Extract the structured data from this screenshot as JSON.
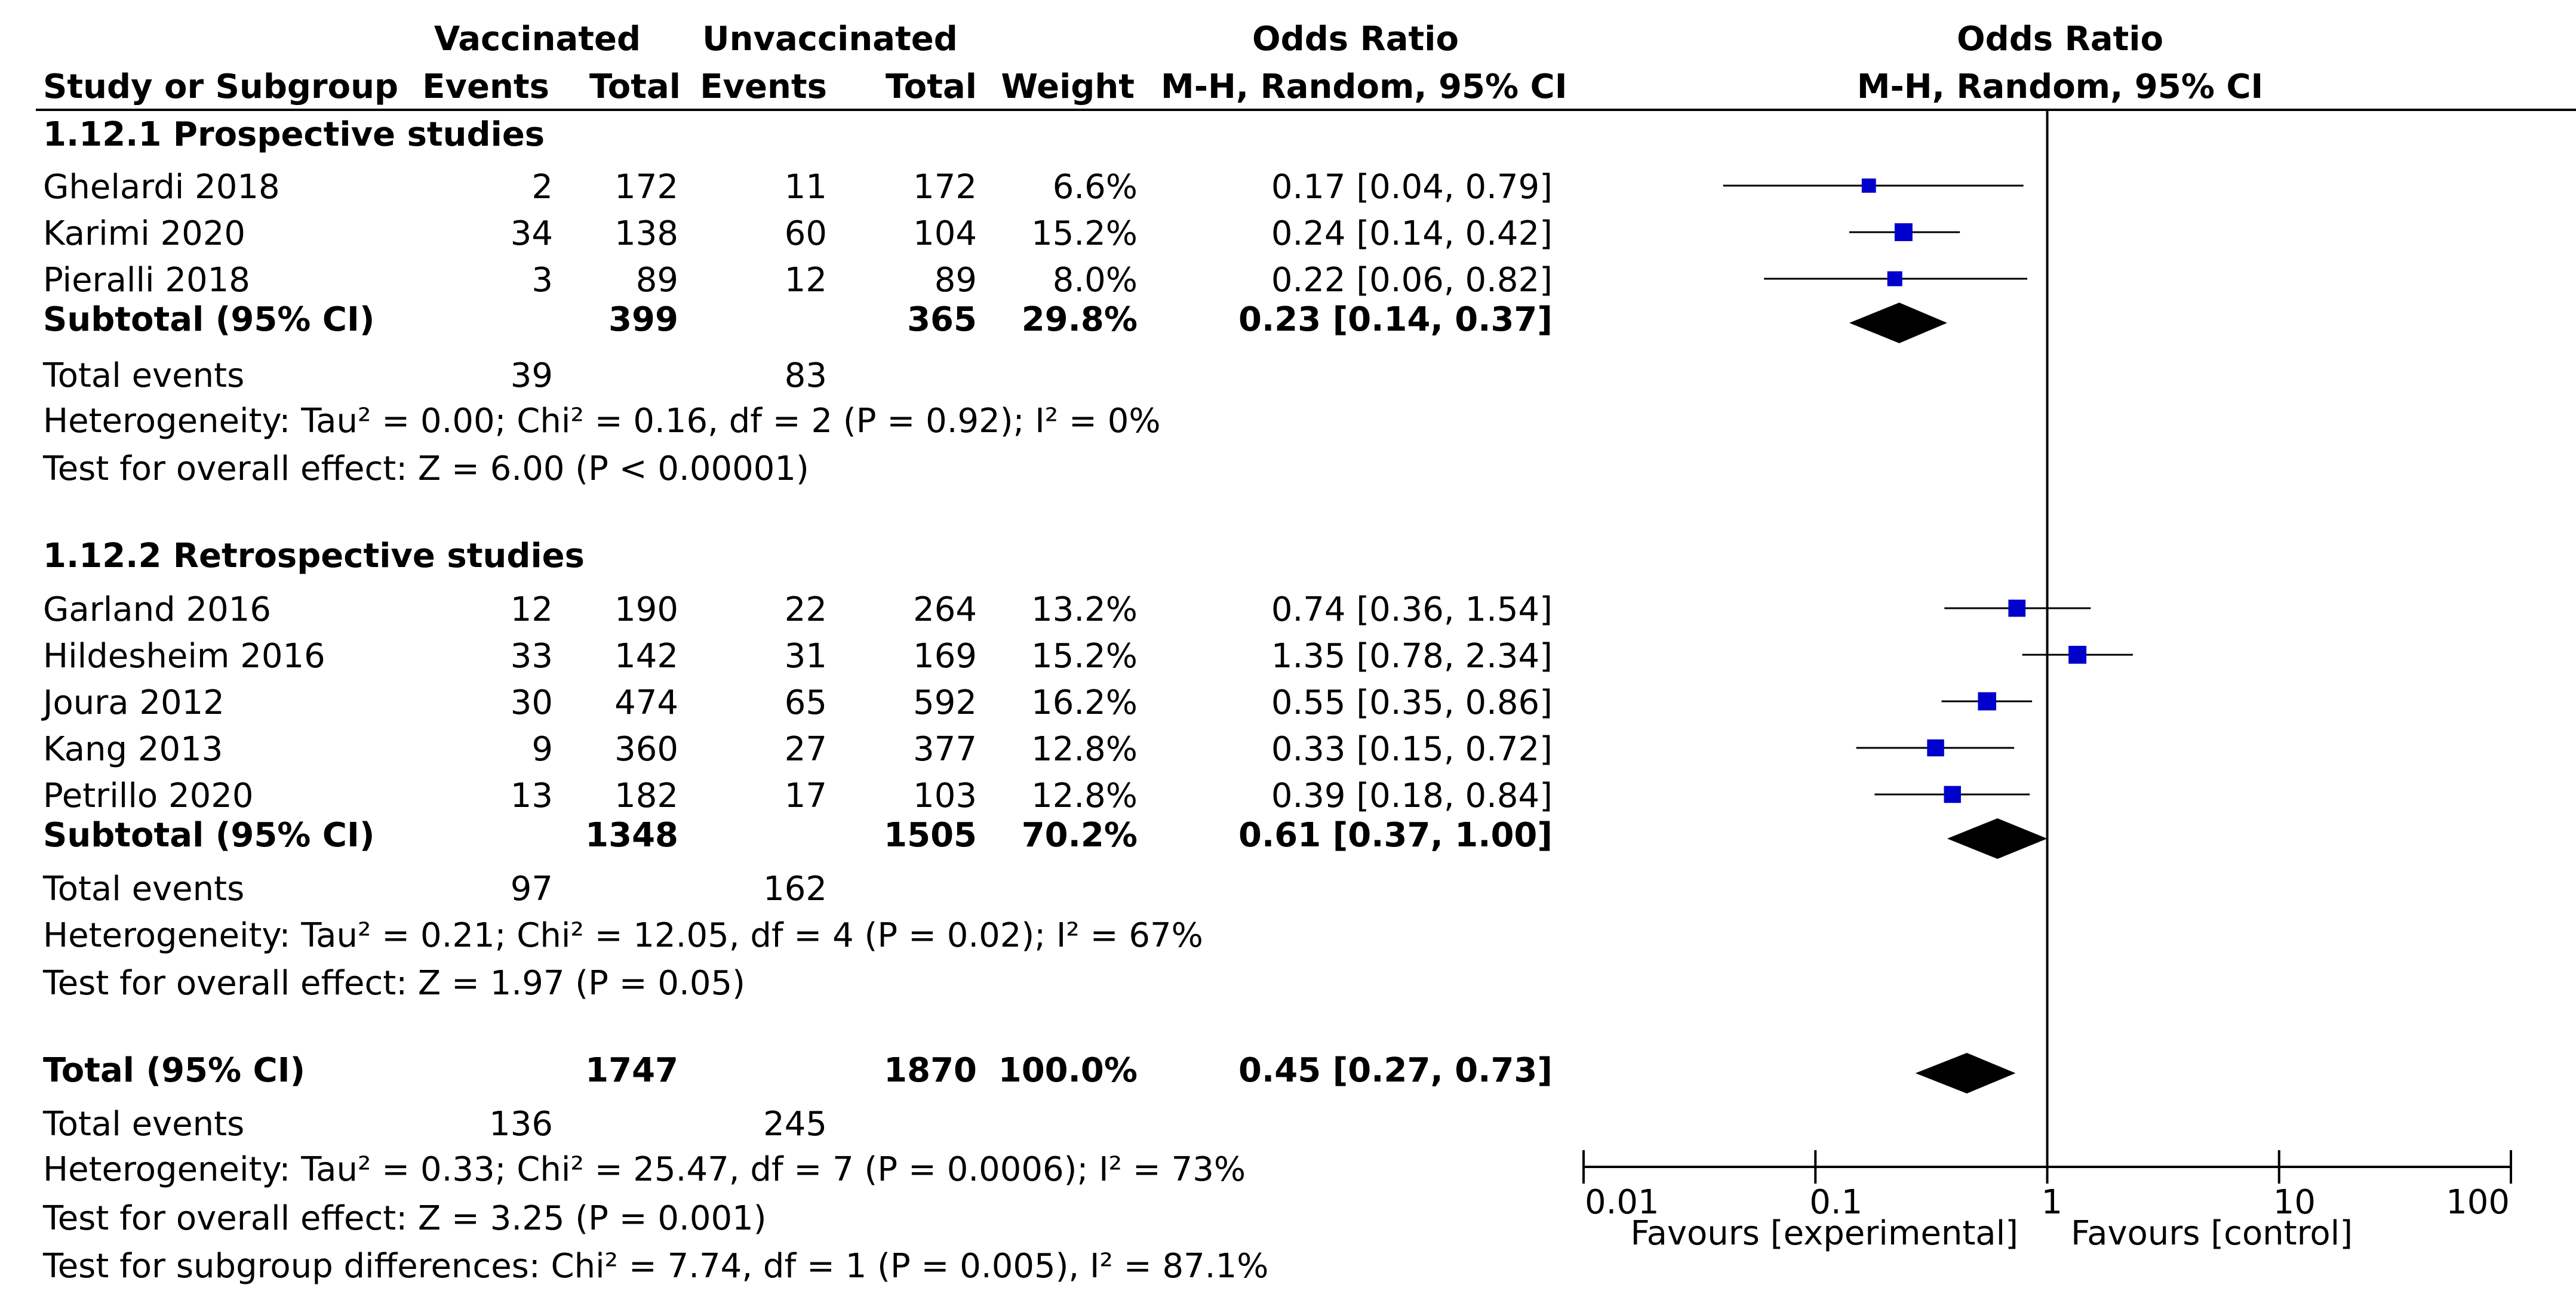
{
  "header": {
    "group_vaccinated": "Vaccinated",
    "group_unvaccinated": "Unvaccinated",
    "odds_ratio": "Odds Ratio",
    "col_study": "Study or Subgroup",
    "col_events": "Events",
    "col_total": "Total",
    "col_weight": "Weight",
    "col_method": "M-H, Random, 95% CI",
    "plot_title": "Odds Ratio",
    "plot_method": "M-H, Random, 95% CI"
  },
  "subgroups": [
    {
      "title": "1.12.1 Prospective studies",
      "studies": [
        {
          "name": "Ghelardi 2018",
          "ev_vac": "2",
          "tot_vac": "172",
          "ev_unvac": "11",
          "tot_unvac": "172",
          "weight": "6.6%",
          "ci_text": "0.17 [0.04, 0.79]"
        },
        {
          "name": "Karimi 2020",
          "ev_vac": "34",
          "tot_vac": "138",
          "ev_unvac": "60",
          "tot_unvac": "104",
          "weight": "15.2%",
          "ci_text": "0.24 [0.14, 0.42]"
        },
        {
          "name": "Pieralli 2018",
          "ev_vac": "3",
          "tot_vac": "89",
          "ev_unvac": "12",
          "tot_unvac": "89",
          "weight": "8.0%",
          "ci_text": "0.22 [0.06, 0.82]"
        }
      ],
      "subtotal": {
        "label": "Subtotal (95% CI)",
        "tot_vac": "399",
        "tot_unvac": "365",
        "weight": "29.8%",
        "ci_text": "0.23 [0.14, 0.37]"
      },
      "total_events": {
        "label": "Total events",
        "vac": "39",
        "unvac": "83"
      },
      "heterogeneity": "Heterogeneity: Tau² = 0.00; Chi² = 0.16, df = 2 (P = 0.92); I² = 0%",
      "overall_effect": "Test for overall effect: Z = 6.00 (P < 0.00001)"
    },
    {
      "title": "1.12.2 Retrospective studies",
      "studies": [
        {
          "name": "Garland 2016",
          "ev_vac": "12",
          "tot_vac": "190",
          "ev_unvac": "22",
          "tot_unvac": "264",
          "weight": "13.2%",
          "ci_text": "0.74 [0.36, 1.54]"
        },
        {
          "name": "Hildesheim 2016",
          "ev_vac": "33",
          "tot_vac": "142",
          "ev_unvac": "31",
          "tot_unvac": "169",
          "weight": "15.2%",
          "ci_text": "1.35 [0.78, 2.34]"
        },
        {
          "name": "Joura 2012",
          "ev_vac": "30",
          "tot_vac": "474",
          "ev_unvac": "65",
          "tot_unvac": "592",
          "weight": "16.2%",
          "ci_text": "0.55 [0.35, 0.86]"
        },
        {
          "name": "Kang 2013",
          "ev_vac": "9",
          "tot_vac": "360",
          "ev_unvac": "27",
          "tot_unvac": "377",
          "weight": "12.8%",
          "ci_text": "0.33 [0.15, 0.72]"
        },
        {
          "name": "Petrillo 2020",
          "ev_vac": "13",
          "tot_vac": "182",
          "ev_unvac": "17",
          "tot_unvac": "103",
          "weight": "12.8%",
          "ci_text": "0.39 [0.18, 0.84]"
        }
      ],
      "subtotal": {
        "label": "Subtotal (95% CI)",
        "tot_vac": "1348",
        "tot_unvac": "1505",
        "weight": "70.2%",
        "ci_text": "0.61 [0.37, 1.00]"
      },
      "total_events": {
        "label": "Total events",
        "vac": "97",
        "unvac": "162"
      },
      "heterogeneity": "Heterogeneity: Tau² = 0.21; Chi² = 12.05, df = 4 (P = 0.02); I² = 67%",
      "overall_effect": "Test for overall effect: Z = 1.97 (P = 0.05)"
    }
  ],
  "overall": {
    "label": "Total (95% CI)",
    "tot_vac": "1747",
    "tot_unvac": "1870",
    "weight": "100.0%",
    "ci_text": "0.45 [0.27, 0.73]",
    "total_events": {
      "label": "Total events",
      "vac": "136",
      "unvac": "245"
    },
    "heterogeneity": "Heterogeneity: Tau² = 0.33; Chi² = 25.47, df = 7 (P = 0.0006); I² = 73%",
    "overall_effect": "Test for overall effect: Z = 3.25 (P = 0.001)",
    "subgroup_diff": "Test for subgroup differences: Chi² = 7.74, df = 1 (P = 0.005), I² = 87.1%"
  },
  "colors": {
    "study_marker": "#0000cc",
    "diamond": "#000000",
    "line": "#000000"
  },
  "chart_data": {
    "type": "forest",
    "title": "Odds Ratio",
    "subtitle": "M-H, Random, 95% CI",
    "scale": "log",
    "xlim": [
      0.01,
      100
    ],
    "ticks": [
      0.01,
      0.1,
      1,
      10,
      100
    ],
    "tick_labels": [
      "0.01",
      "0.1",
      "1",
      "10",
      "100"
    ],
    "null_value": 1,
    "favours_left": "Favours [experimental]",
    "favours_right": "Favours [control]",
    "studies": [
      {
        "name": "Ghelardi 2018",
        "or": 0.17,
        "lo": 0.04,
        "hi": 0.79,
        "weight": 6.6
      },
      {
        "name": "Karimi 2020",
        "or": 0.24,
        "lo": 0.14,
        "hi": 0.42,
        "weight": 15.2
      },
      {
        "name": "Pieralli 2018",
        "or": 0.22,
        "lo": 0.06,
        "hi": 0.82,
        "weight": 8.0
      },
      {
        "name": "Garland 2016",
        "or": 0.74,
        "lo": 0.36,
        "hi": 1.54,
        "weight": 13.2
      },
      {
        "name": "Hildesheim 2016",
        "or": 1.35,
        "lo": 0.78,
        "hi": 2.34,
        "weight": 15.2
      },
      {
        "name": "Joura 2012",
        "or": 0.55,
        "lo": 0.35,
        "hi": 0.86,
        "weight": 16.2
      },
      {
        "name": "Kang 2013",
        "or": 0.33,
        "lo": 0.15,
        "hi": 0.72,
        "weight": 12.8
      },
      {
        "name": "Petrillo 2020",
        "or": 0.39,
        "lo": 0.18,
        "hi": 0.84,
        "weight": 12.8
      }
    ],
    "summaries": [
      {
        "name": "Subtotal prospective",
        "or": 0.23,
        "lo": 0.14,
        "hi": 0.37
      },
      {
        "name": "Subtotal retrospective",
        "or": 0.61,
        "lo": 0.37,
        "hi": 1.0
      },
      {
        "name": "Total",
        "or": 0.45,
        "lo": 0.27,
        "hi": 0.73
      }
    ]
  }
}
